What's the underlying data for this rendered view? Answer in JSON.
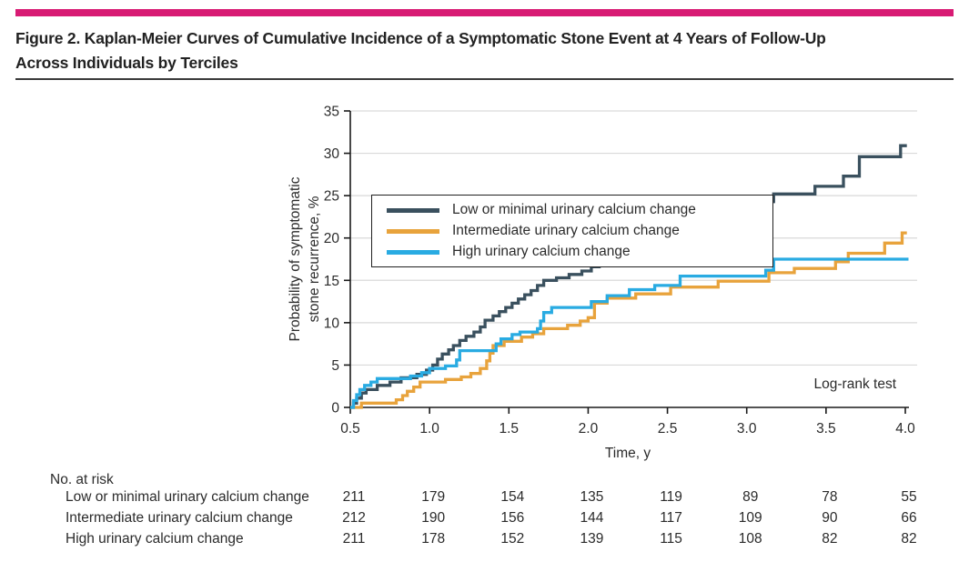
{
  "figure": {
    "title": "Figure 2. Kaplan-Meier Curves of Cumulative Incidence of a Symptomatic Stone Event at 4 Years of Follow-Up Across Individuals by Terciles",
    "title_lines": [
      "Figure 2. Kaplan-Meier Curves of Cumulative Incidence of a Symptomatic Stone Event at 4 Years of Follow-Up",
      "Across Individuals by Terciles"
    ],
    "accent_color": "#d81b74"
  },
  "chart_data": {
    "type": "line",
    "subtype": "kaplan-meier-step",
    "xlabel": "Time, y",
    "ylabel_lines": [
      "Probability of symptomatic",
      "stone recurrence, %"
    ],
    "annotation": "Log-rank test",
    "xlim": [
      0.5,
      4.0
    ],
    "ylim": [
      0,
      35
    ],
    "xtick_labels": [
      "0.5",
      "1.0",
      "1.5",
      "2.0",
      "2.5",
      "3.0",
      "3.5",
      "4.0"
    ],
    "xticks": [
      0.5,
      1.0,
      1.5,
      2.0,
      2.5,
      3.0,
      3.5,
      4.0
    ],
    "yticks": [
      0,
      5,
      10,
      15,
      20,
      25,
      30,
      35
    ],
    "grid": "horizontal",
    "grid_color": "#d9d9d9",
    "axis_color": "#1a1a1a",
    "text_color": "#2b2b2b",
    "legend_position": "top-left-box",
    "series": [
      {
        "name": "Low or minimal urinary calcium change",
        "color": "#3a505e",
        "end": 4.01,
        "points": [
          [
            0.5,
            0
          ],
          [
            0.52,
            0.5
          ],
          [
            0.54,
            1.1
          ],
          [
            0.57,
            1.7
          ],
          [
            0.6,
            2.1
          ],
          [
            0.67,
            2.6
          ],
          [
            0.75,
            3.0
          ],
          [
            0.82,
            3.5
          ],
          [
            0.92,
            3.9
          ],
          [
            0.98,
            4.4
          ],
          [
            1.02,
            5.0
          ],
          [
            1.05,
            5.7
          ],
          [
            1.08,
            6.3
          ],
          [
            1.12,
            6.8
          ],
          [
            1.15,
            7.3
          ],
          [
            1.19,
            7.9
          ],
          [
            1.23,
            8.4
          ],
          [
            1.28,
            8.9
          ],
          [
            1.32,
            9.5
          ],
          [
            1.35,
            10.3
          ],
          [
            1.4,
            10.8
          ],
          [
            1.44,
            11.3
          ],
          [
            1.48,
            11.8
          ],
          [
            1.52,
            12.3
          ],
          [
            1.56,
            12.8
          ],
          [
            1.6,
            13.3
          ],
          [
            1.64,
            13.8
          ],
          [
            1.68,
            14.4
          ],
          [
            1.72,
            15.0
          ],
          [
            1.8,
            15.3
          ],
          [
            1.88,
            15.7
          ],
          [
            1.96,
            16.1
          ],
          [
            2.02,
            16.6
          ],
          [
            2.07,
            17.5
          ],
          [
            2.13,
            18.0
          ],
          [
            2.2,
            18.6
          ],
          [
            2.28,
            19.1
          ],
          [
            2.33,
            19.4
          ],
          [
            2.54,
            20.2
          ],
          [
            2.74,
            21.4
          ],
          [
            2.78,
            22.5
          ],
          [
            2.85,
            23.0
          ],
          [
            2.93,
            23.6
          ],
          [
            3.05,
            24.3
          ],
          [
            3.17,
            25.2
          ],
          [
            3.43,
            26.1
          ],
          [
            3.61,
            27.3
          ],
          [
            3.71,
            29.6
          ],
          [
            3.97,
            30.9
          ]
        ]
      },
      {
        "name": "Intermediate urinary calcium change",
        "color": "#e8a33c",
        "end": 4.01,
        "points": [
          [
            0.5,
            0
          ],
          [
            0.57,
            0.5
          ],
          [
            0.79,
            0.9
          ],
          [
            0.83,
            1.4
          ],
          [
            0.86,
            1.9
          ],
          [
            0.9,
            2.4
          ],
          [
            0.94,
            3.0
          ],
          [
            1.1,
            3.3
          ],
          [
            1.2,
            3.6
          ],
          [
            1.26,
            4.0
          ],
          [
            1.32,
            4.6
          ],
          [
            1.36,
            5.5
          ],
          [
            1.38,
            6.4
          ],
          [
            1.4,
            7.3
          ],
          [
            1.47,
            7.8
          ],
          [
            1.58,
            8.3
          ],
          [
            1.65,
            8.7
          ],
          [
            1.72,
            9.3
          ],
          [
            1.87,
            9.7
          ],
          [
            1.95,
            10.2
          ],
          [
            2.0,
            10.6
          ],
          [
            2.04,
            12.3
          ],
          [
            2.12,
            12.9
          ],
          [
            2.3,
            13.4
          ],
          [
            2.52,
            14.2
          ],
          [
            2.82,
            14.9
          ],
          [
            3.14,
            15.9
          ],
          [
            3.3,
            16.4
          ],
          [
            3.56,
            17.2
          ],
          [
            3.64,
            18.2
          ],
          [
            3.87,
            19.4
          ],
          [
            3.98,
            20.6
          ]
        ]
      },
      {
        "name": "High urinary calcium change",
        "color": "#29abe2",
        "end": 4.02,
        "points": [
          [
            0.5,
            0
          ],
          [
            0.52,
            0.8
          ],
          [
            0.54,
            1.5
          ],
          [
            0.56,
            2.1
          ],
          [
            0.59,
            2.6
          ],
          [
            0.63,
            3.0
          ],
          [
            0.67,
            3.4
          ],
          [
            0.88,
            3.7
          ],
          [
            0.95,
            4.1
          ],
          [
            1.0,
            4.6
          ],
          [
            1.1,
            4.9
          ],
          [
            1.17,
            5.6
          ],
          [
            1.19,
            6.7
          ],
          [
            1.42,
            7.5
          ],
          [
            1.45,
            8.1
          ],
          [
            1.52,
            8.6
          ],
          [
            1.57,
            8.9
          ],
          [
            1.68,
            9.3
          ],
          [
            1.7,
            10.2
          ],
          [
            1.72,
            11.2
          ],
          [
            1.77,
            11.8
          ],
          [
            2.02,
            12.5
          ],
          [
            2.12,
            13.2
          ],
          [
            2.26,
            13.9
          ],
          [
            2.42,
            14.4
          ],
          [
            2.58,
            15.5
          ],
          [
            3.12,
            16.2
          ],
          [
            3.17,
            17.5
          ]
        ]
      }
    ]
  },
  "risk_table": {
    "header": "No. at risk",
    "time_columns": [
      0.5,
      1.0,
      1.5,
      2.0,
      2.5,
      3.0,
      3.5,
      4.0
    ],
    "rows": [
      {
        "label": "Low or minimal urinary calcium change",
        "values": [
          "211",
          "179",
          "154",
          "135",
          "119",
          "89",
          "78",
          "55"
        ]
      },
      {
        "label": "Intermediate urinary calcium change",
        "values": [
          "212",
          "190",
          "156",
          "144",
          "117",
          "109",
          "90",
          "66"
        ]
      },
      {
        "label": "High urinary calcium change",
        "values": [
          "211",
          "178",
          "152",
          "139",
          "115",
          "108",
          "82",
          "82"
        ]
      }
    ]
  }
}
